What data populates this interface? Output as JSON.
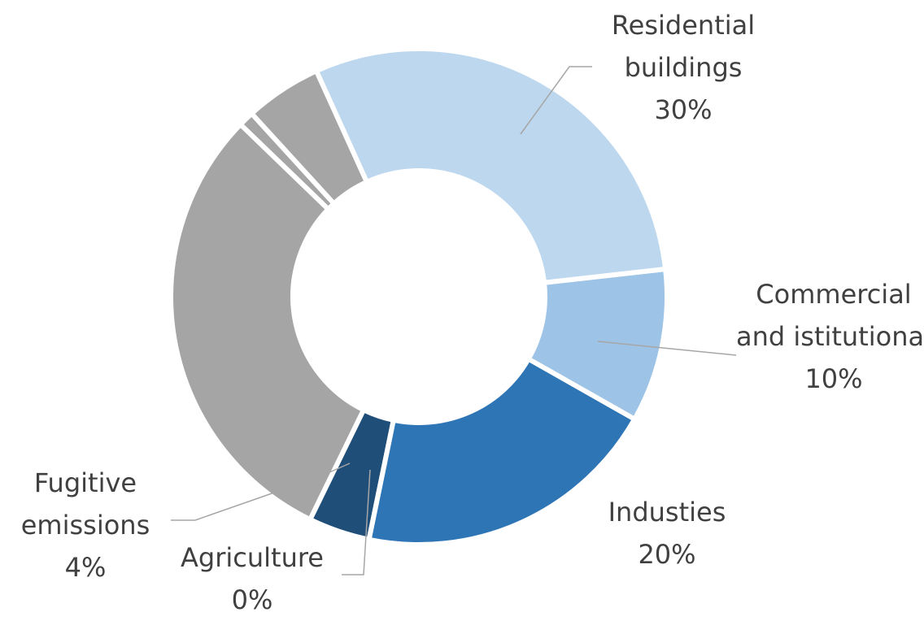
{
  "chart_data": {
    "type": "donut",
    "categories": [
      "Residential buildings",
      "Commercial and istitutional",
      "Industies",
      "Agriculture",
      "Fugitive emissions",
      null,
      null,
      null
    ],
    "values": [
      30,
      10,
      20,
      0,
      4,
      30,
      1,
      5
    ],
    "value_labels": [
      "30%",
      "10%",
      "20%",
      "0%",
      "4%",
      null,
      null,
      null
    ],
    "colors": [
      "#bdd7ee",
      "#9dc3e6",
      "#2e75b6",
      "#255e91",
      "#1f4e79",
      "#a5a5a5",
      "#a5a5a5",
      "#a5a5a5"
    ]
  }
}
